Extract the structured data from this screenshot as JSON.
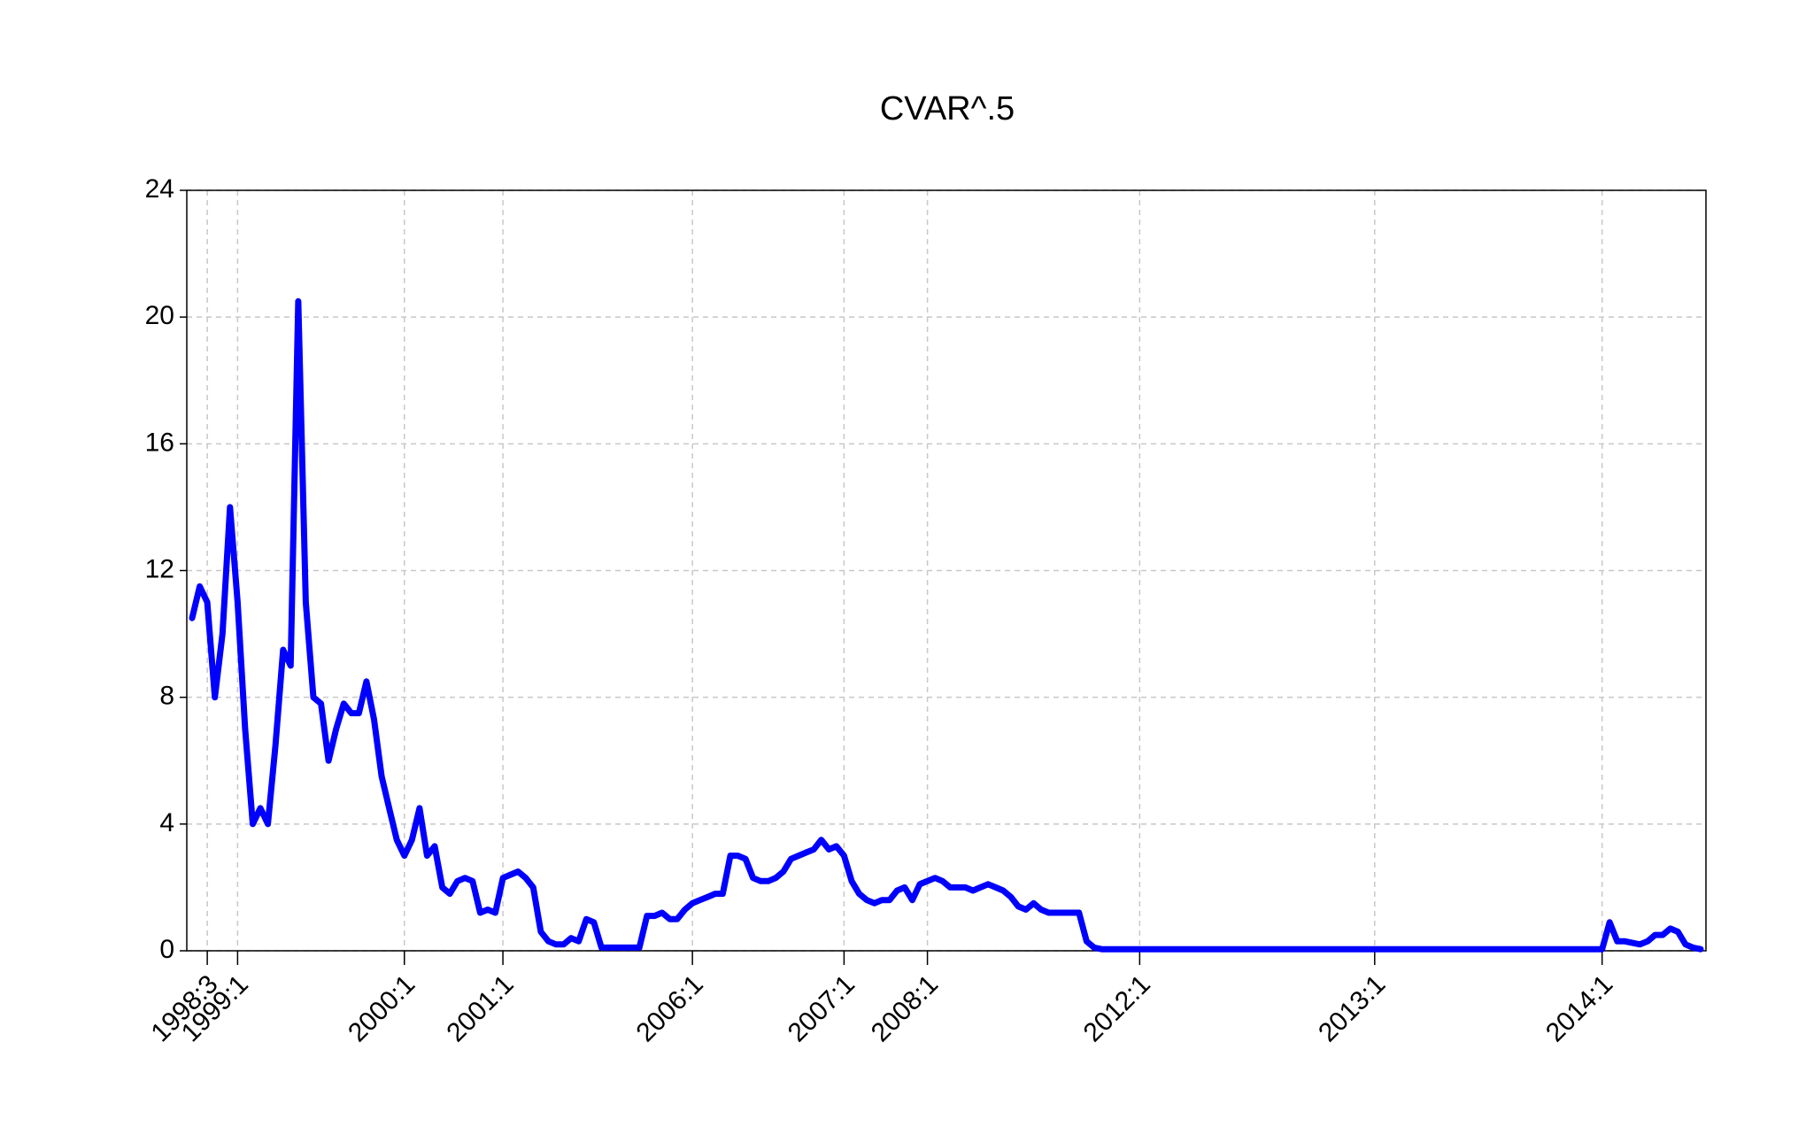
{
  "chart_data": {
    "type": "line",
    "title": "CVAR^.5",
    "categories": [
      null,
      null,
      "1998:3",
      null,
      null,
      null,
      "1999:1",
      null,
      null,
      null,
      null,
      null,
      null,
      null,
      null,
      null,
      null,
      null,
      null,
      null,
      null,
      null,
      null,
      null,
      null,
      null,
      null,
      null,
      "2000:1",
      null,
      null,
      null,
      null,
      null,
      null,
      null,
      null,
      null,
      null,
      null,
      null,
      "2001:1",
      null,
      null,
      null,
      null,
      null,
      null,
      null,
      null,
      null,
      null,
      null,
      null,
      null,
      null,
      null,
      null,
      null,
      null,
      null,
      null,
      null,
      null,
      null,
      null,
      "2006:1",
      null,
      null,
      null,
      null,
      null,
      null,
      null,
      null,
      null,
      null,
      null,
      null,
      null,
      null,
      null,
      null,
      null,
      null,
      null,
      "2007:1",
      null,
      null,
      null,
      null,
      null,
      null,
      null,
      null,
      null,
      null,
      "2008:1",
      null,
      null,
      null,
      null,
      null,
      null,
      null,
      null,
      null,
      null,
      null,
      null,
      null,
      null,
      null,
      null,
      null,
      null,
      null,
      null,
      null,
      null,
      null,
      null,
      null,
      null,
      null,
      "2012:1",
      null,
      null,
      null,
      null,
      null,
      null,
      null,
      null,
      null,
      null,
      null,
      null,
      null,
      null,
      null,
      null,
      null,
      null,
      null,
      null,
      null,
      null,
      null,
      null,
      null,
      null,
      null,
      null,
      null,
      null,
      "2013:1",
      null,
      null,
      null,
      null,
      null,
      null,
      null,
      null,
      null,
      null,
      null,
      null,
      null,
      null,
      null,
      null,
      null,
      null,
      null,
      null,
      null,
      null,
      null,
      null,
      null,
      null,
      null,
      null,
      null,
      "2014:1",
      null,
      null,
      null,
      null,
      null,
      null,
      null,
      null,
      null,
      null,
      null,
      null,
      null
    ],
    "values": [
      10.5,
      11.5,
      11,
      8,
      10,
      14,
      11,
      7,
      4,
      4.5,
      4,
      6.5,
      9.5,
      9,
      20.5,
      11,
      8,
      7.8,
      6,
      7,
      7.8,
      7.5,
      7.5,
      8.5,
      7.3,
      5.5,
      4.5,
      3.5,
      3,
      3.5,
      4.5,
      3,
      3.3,
      2,
      1.8,
      2.2,
      2.3,
      2.2,
      1.2,
      1.3,
      1.2,
      2.3,
      2.4,
      2.5,
      2.3,
      2,
      0.6,
      0.3,
      0.2,
      0.2,
      0.4,
      0.3,
      1,
      0.9,
      0.1,
      0.1,
      0.1,
      0.1,
      0.1,
      0.1,
      1.1,
      1.1,
      1.2,
      1,
      1,
      1.3,
      1.5,
      1.6,
      1.7,
      1.8,
      1.8,
      3,
      3,
      2.9,
      2.3,
      2.2,
      2.2,
      2.3,
      2.5,
      2.9,
      3,
      3.1,
      3.2,
      3.5,
      3.2,
      3.3,
      3,
      2.2,
      1.8,
      1.6,
      1.5,
      1.6,
      1.6,
      1.9,
      2,
      1.6,
      2.1,
      2.2,
      2.3,
      2.2,
      2,
      2,
      2,
      1.9,
      2,
      2.1,
      2,
      1.9,
      1.7,
      1.4,
      1.3,
      1.5,
      1.3,
      1.2,
      1.2,
      1.2,
      1.2,
      1.2,
      0.3,
      0.1,
      0.05,
      0.05,
      0.05,
      0.05,
      0.05,
      0.05,
      0.05,
      0.05,
      0.05,
      0.05,
      0.05,
      0.05,
      0.05,
      0.05,
      0.05,
      0.05,
      0.05,
      0.05,
      0.05,
      0.05,
      0.05,
      0.05,
      0.05,
      0.05,
      0.05,
      0.05,
      0.05,
      0.05,
      0.05,
      0.05,
      0.05,
      0.05,
      0.05,
      0.05,
      0.05,
      0.05,
      0.05,
      0.05,
      0.05,
      0.05,
      0.05,
      0.05,
      0.05,
      0.05,
      0.05,
      0.05,
      0.05,
      0.05,
      0.05,
      0.05,
      0.05,
      0.05,
      0.05,
      0.05,
      0.05,
      0.05,
      0.05,
      0.05,
      0.05,
      0.05,
      0.05,
      0.05,
      0.05,
      0.05,
      0.05,
      0.05,
      0.05,
      0.9,
      0.3,
      0.3,
      0.25,
      0.2,
      0.3,
      0.5,
      0.5,
      0.7,
      0.6,
      0.2,
      0.1,
      0.05
    ],
    "color": "#0000ff",
    "ylim": [
      0,
      24
    ],
    "yticks": [
      0,
      4,
      8,
      12,
      16,
      20,
      24
    ],
    "grid": true
  }
}
